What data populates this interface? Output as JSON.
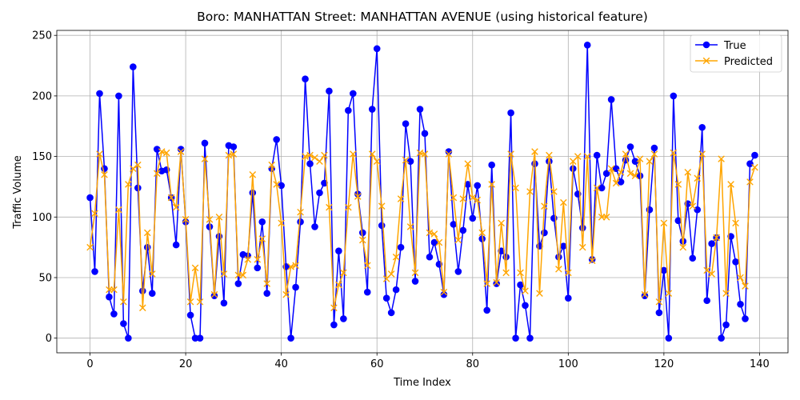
{
  "chart_data": {
    "type": "line",
    "title": "Boro: MANHATTAN Street: MANHATTAN AVENUE (using historical feature)",
    "xlabel": "Time Index",
    "ylabel": "Traffic Volume",
    "xlim": [
      -6.95,
      145.95
    ],
    "ylim": [
      -12.1,
      254.1
    ],
    "xticks": [
      0,
      20,
      40,
      60,
      80,
      100,
      120,
      140
    ],
    "yticks": [
      0,
      50,
      100,
      150,
      200,
      250
    ],
    "grid": true,
    "legend_position": "top-right",
    "x": [
      0,
      1,
      2,
      3,
      4,
      5,
      6,
      7,
      8,
      9,
      10,
      11,
      12,
      13,
      14,
      15,
      16,
      17,
      18,
      19,
      20,
      21,
      22,
      23,
      24,
      25,
      26,
      27,
      28,
      29,
      30,
      31,
      32,
      33,
      34,
      35,
      36,
      37,
      38,
      39,
      40,
      41,
      42,
      43,
      44,
      45,
      46,
      47,
      48,
      49,
      50,
      51,
      52,
      53,
      54,
      55,
      56,
      57,
      58,
      59,
      60,
      61,
      62,
      63,
      64,
      65,
      66,
      67,
      68,
      69,
      70,
      71,
      72,
      73,
      74,
      75,
      76,
      77,
      78,
      79,
      80,
      81,
      82,
      83,
      84,
      85,
      86,
      87,
      88,
      89,
      90,
      91,
      92,
      93,
      94,
      95,
      96,
      97,
      98,
      99,
      100,
      101,
      102,
      103,
      104,
      105,
      106,
      107,
      108,
      109,
      110,
      111,
      112,
      113,
      114,
      115,
      116,
      117,
      118,
      119,
      120,
      121,
      122,
      123,
      124,
      125,
      126,
      127,
      128,
      129,
      130,
      131,
      132,
      133,
      134,
      135,
      136,
      137,
      138,
      139
    ],
    "series": [
      {
        "name": "True",
        "color": "#0000ff",
        "marker": "circle",
        "values": [
          116,
          55,
          202,
          140,
          34,
          20,
          200,
          12,
          0,
          224,
          124,
          39,
          75,
          37,
          156,
          138,
          139,
          116,
          77,
          156,
          96,
          19,
          0,
          0,
          161,
          92,
          35,
          84,
          29,
          159,
          158,
          45,
          69,
          68,
          120,
          58,
          96,
          37,
          140,
          164,
          126,
          59,
          0,
          42,
          96,
          214,
          144,
          92,
          120,
          128,
          204,
          11,
          72,
          16,
          188,
          202,
          119,
          87,
          38,
          189,
          239,
          93,
          33,
          21,
          40,
          75,
          177,
          146,
          47,
          189,
          169,
          67,
          79,
          61,
          36,
          154,
          94,
          55,
          89,
          127,
          99,
          126,
          82,
          23,
          143,
          45,
          72,
          67,
          186,
          0,
          44,
          27,
          0,
          144,
          76,
          87,
          146,
          99,
          67,
          76,
          33,
          140,
          119,
          91,
          242,
          65,
          151,
          124,
          136,
          197,
          140,
          129,
          147,
          158,
          146,
          134,
          35,
          106,
          157,
          21,
          56,
          0,
          200,
          97,
          80,
          111,
          66,
          106,
          174,
          31,
          78,
          83,
          0,
          11,
          84,
          63,
          28,
          16,
          144,
          151
        ]
      },
      {
        "name": "Predicted",
        "color": "#ffa500",
        "marker": "x",
        "values": [
          75,
          103,
          152,
          135,
          40,
          40,
          106,
          30,
          127,
          140,
          143,
          25,
          87,
          53,
          136,
          154,
          153,
          116,
          108,
          154,
          98,
          30,
          58,
          30,
          148,
          98,
          36,
          100,
          53,
          151,
          152,
          52,
          52,
          65,
          135,
          65,
          82,
          45,
          143,
          127,
          95,
          36,
          59,
          60,
          104,
          150,
          151,
          149,
          146,
          151,
          108,
          25,
          44,
          54,
          108,
          152,
          117,
          81,
          60,
          152,
          146,
          109,
          49,
          53,
          67,
          115,
          147,
          92,
          54,
          153,
          152,
          87,
          86,
          79,
          38,
          152,
          116,
          81,
          115,
          144,
          116,
          114,
          87,
          45,
          127,
          46,
          95,
          54,
          152,
          124,
          54,
          39,
          121,
          154,
          37,
          109,
          151,
          121,
          57,
          112,
          54,
          146,
          150,
          75,
          150,
          64,
          124,
          100,
          100,
          140,
          128,
          137,
          152,
          136,
          134,
          148,
          36,
          146,
          152,
          30,
          95,
          37,
          153,
          127,
          75,
          137,
          109,
          132,
          152,
          56,
          53,
          83,
          148,
          37,
          127,
          95,
          50,
          43,
          129,
          141
        ]
      }
    ]
  }
}
